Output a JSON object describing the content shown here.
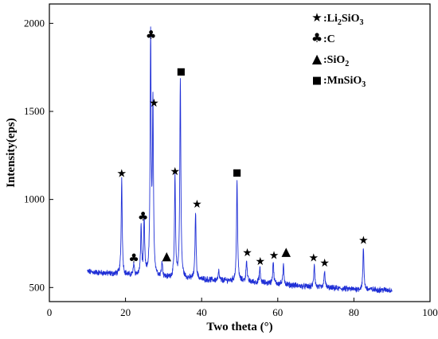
{
  "chart_data": {
    "type": "line",
    "xlabel": "Two theta (°)",
    "ylabel": "Intensity(eps)",
    "xlim": [
      0,
      100
    ],
    "ylim": [
      420,
      2110
    ],
    "xticks": [
      "0",
      "20",
      "40",
      "60",
      "80",
      "100"
    ],
    "yticks": [
      "500",
      "1000",
      "1500",
      "2000"
    ],
    "grid": false,
    "legend_position": "top-right",
    "series_color": "#1f2fd6",
    "legend": [
      {
        "symbol": "star",
        "label_parts": [
          ":Li",
          "2",
          "SiO",
          "3"
        ]
      },
      {
        "symbol": "club",
        "label_parts": [
          ":C"
        ]
      },
      {
        "symbol": "triangle",
        "label_parts": [
          ":SiO",
          "2"
        ]
      },
      {
        "symbol": "square",
        "label_parts": [
          ":MnSiO",
          "3"
        ]
      }
    ],
    "baseline": [
      [
        10,
        590
      ],
      [
        20,
        570
      ],
      [
        30,
        555
      ],
      [
        40,
        545
      ],
      [
        50,
        535
      ],
      [
        60,
        520
      ],
      [
        70,
        500
      ],
      [
        80,
        490
      ],
      [
        90,
        485
      ]
    ],
    "peaks": [
      {
        "x": 19.0,
        "y": 1120
      },
      {
        "x": 22.2,
        "y": 635
      },
      {
        "x": 24.1,
        "y": 840
      },
      {
        "x": 24.9,
        "y": 880
      },
      {
        "x": 26.6,
        "y": 1905
      },
      {
        "x": 27.2,
        "y": 1510
      },
      {
        "x": 29.6,
        "y": 645
      },
      {
        "x": 33.0,
        "y": 1125
      },
      {
        "x": 34.4,
        "y": 1690
      },
      {
        "x": 38.4,
        "y": 930
      },
      {
        "x": 44.5,
        "y": 590
      },
      {
        "x": 49.3,
        "y": 1120
      },
      {
        "x": 51.8,
        "y": 660
      },
      {
        "x": 55.3,
        "y": 610
      },
      {
        "x": 58.8,
        "y": 650
      },
      {
        "x": 61.5,
        "y": 630
      },
      {
        "x": 69.6,
        "y": 635
      },
      {
        "x": 72.3,
        "y": 600
      },
      {
        "x": 82.5,
        "y": 725
      }
    ],
    "markers": [
      {
        "symbol": "star",
        "x": 19.0,
        "y": 1150
      },
      {
        "symbol": "club",
        "x": 22.2,
        "y": 668
      },
      {
        "symbol": "club",
        "x": 24.6,
        "y": 905
      },
      {
        "symbol": "club",
        "x": 26.7,
        "y": 1935
      },
      {
        "symbol": "star",
        "x": 27.5,
        "y": 1550
      },
      {
        "symbol": "triangle",
        "x": 30.8,
        "y": 680
      },
      {
        "symbol": "star",
        "x": 33.0,
        "y": 1160
      },
      {
        "symbol": "square",
        "x": 34.6,
        "y": 1730
      },
      {
        "symbol": "star",
        "x": 38.8,
        "y": 975
      },
      {
        "symbol": "square",
        "x": 49.3,
        "y": 1155
      },
      {
        "symbol": "star",
        "x": 52.0,
        "y": 700
      },
      {
        "symbol": "star",
        "x": 55.4,
        "y": 650
      },
      {
        "symbol": "star",
        "x": 59.0,
        "y": 685
      },
      {
        "symbol": "triangle",
        "x": 62.2,
        "y": 705
      },
      {
        "symbol": "star",
        "x": 69.4,
        "y": 670
      },
      {
        "symbol": "star",
        "x": 72.3,
        "y": 640
      },
      {
        "symbol": "star",
        "x": 82.5,
        "y": 770
      }
    ]
  }
}
